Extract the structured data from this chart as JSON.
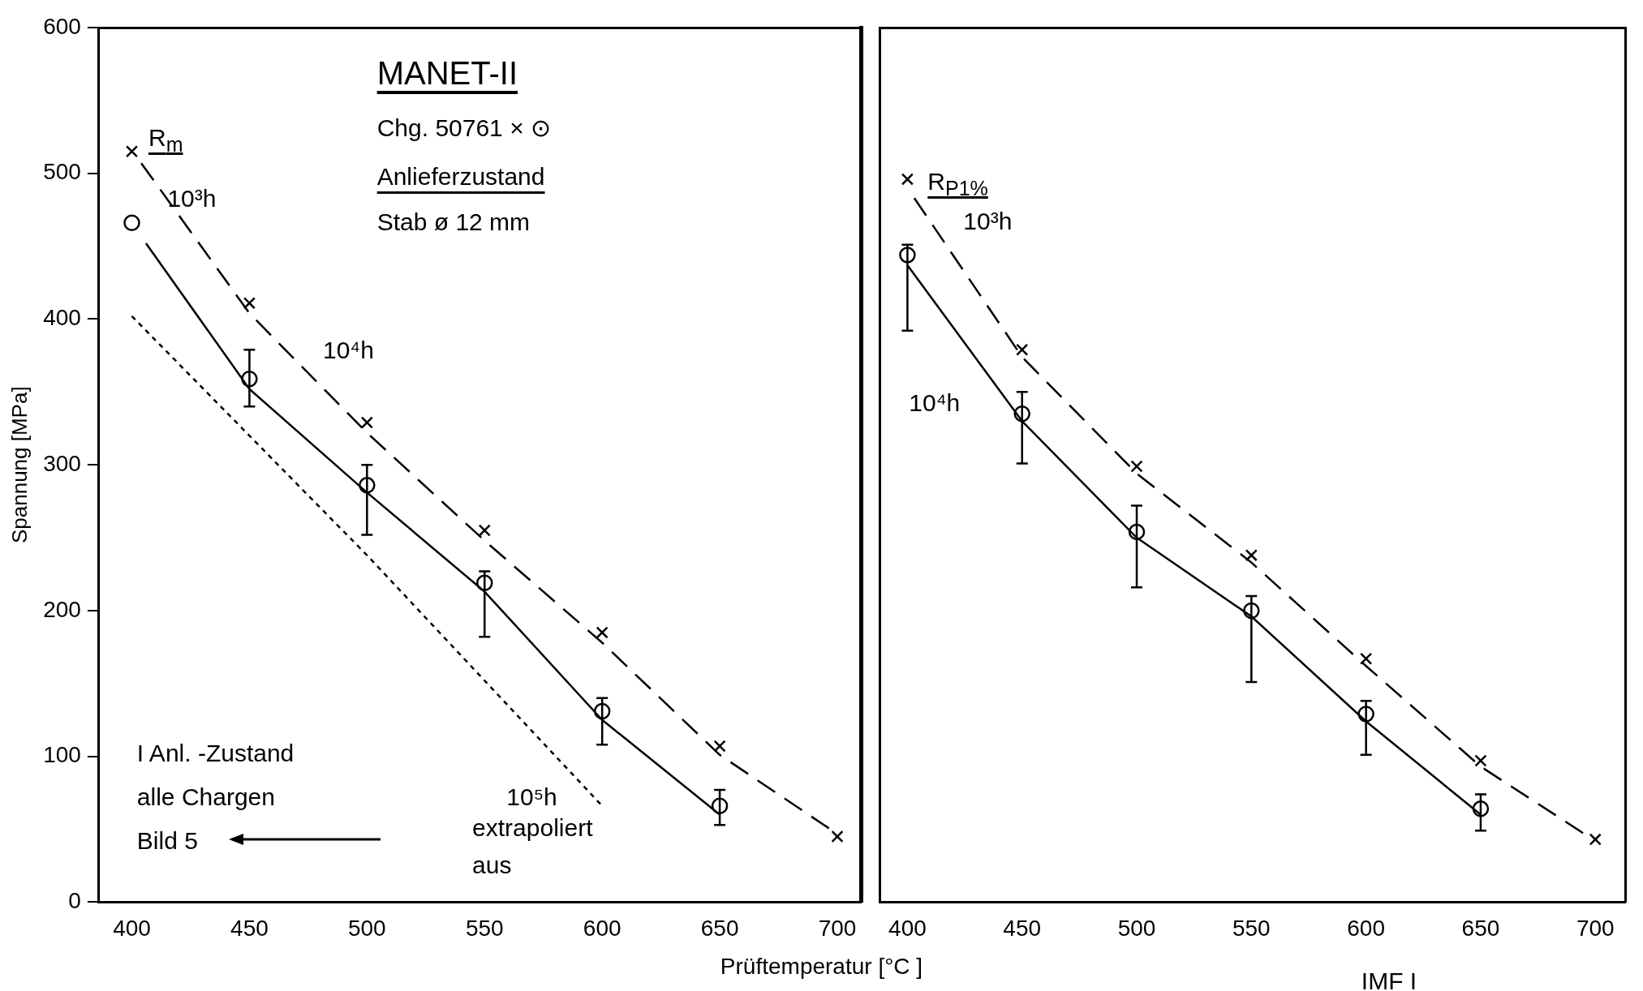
{
  "chart_data": [
    {
      "type": "scatter",
      "title": "MANET-II",
      "ylabel": "Spannung [MPa]",
      "xlabel": "Prüftemperatur [°C ]",
      "xlim": [
        386,
        710
      ],
      "xticks": [
        400,
        450,
        500,
        550,
        600,
        650,
        700
      ],
      "ylim": [
        0,
        600
      ],
      "yticks": [
        0,
        100,
        200,
        300,
        400,
        500,
        600
      ],
      "grid": false,
      "legend": false,
      "series": [
        {
          "type": "scatter",
          "marker": "cross",
          "color": "#000000",
          "x": [
            400,
            450,
            500,
            550,
            600,
            650,
            700
          ],
          "values": [
            515,
            411,
            329,
            255,
            185,
            107,
            45
          ]
        },
        {
          "type": "scatter",
          "marker": "circle",
          "color": "#000000",
          "x": [
            400,
            450,
            500,
            550,
            600,
            650
          ],
          "values": [
            466,
            359,
            286,
            219,
            131,
            66
          ],
          "errors": [
            null,
            [
              340,
              379
            ],
            [
              252,
              300
            ],
            [
              182,
              227
            ],
            [
              108,
              140
            ],
            [
              53,
              77
            ]
          ]
        },
        {
          "type": "line",
          "marker": "none",
          "line_style": "dashed",
          "color": "#000000",
          "x": [
            404,
            450,
            500,
            550,
            600,
            650,
            697
          ],
          "values": [
            507,
            404,
            322,
            248,
            178,
            101,
            50
          ]
        },
        {
          "type": "line",
          "marker": "none",
          "line_style": "solid",
          "color": "#000000",
          "x": [
            406,
            450,
            500,
            550,
            600,
            650
          ],
          "values": [
            452,
            352,
            281,
            213,
            125,
            60
          ]
        },
        {
          "type": "line",
          "marker": "none",
          "line_style": "dotted",
          "color": "#000000",
          "x": [
            400,
            500,
            600
          ],
          "values": [
            402,
            238,
            66
          ]
        }
      ],
      "annotations": [
        "Chg.  50761      × ⊙",
        "Anlieferzustand",
        "Stab  ø 12 mm",
        "I Anl. -Zustand",
        "alle  Chargen",
        "Bild  5",
        "extrapoliert",
        "aus",
        "R$_{m}$",
        "10³h",
        "10⁴h",
        "10⁵h"
      ]
    },
    {
      "type": "scatter",
      "xlim": [
        388,
        713
      ],
      "xticks": [
        400,
        450,
        500,
        550,
        600,
        650,
        700
      ],
      "ylim": [
        0,
        600
      ],
      "yticks": [
        0,
        100,
        200,
        300,
        400,
        500,
        600
      ],
      "tick_labels": "x",
      "grid": false,
      "legend": false,
      "series": [
        {
          "type": "scatter",
          "marker": "cross",
          "color": "#000000",
          "x": [
            400,
            450,
            500,
            550,
            600,
            650,
            700
          ],
          "values": [
            496,
            379,
            299,
            238,
            167,
            97,
            43
          ]
        },
        {
          "type": "scatter",
          "marker": "circle",
          "color": "#000000",
          "x": [
            400,
            450,
            500,
            550,
            600,
            650
          ],
          "values": [
            444,
            335,
            254,
            200,
            129,
            64
          ],
          "errors": [
            [
              392,
              451
            ],
            [
              301,
              350
            ],
            [
              216,
              272
            ],
            [
              151,
              210
            ],
            [
              101,
              138
            ],
            [
              49,
              74
            ]
          ]
        },
        {
          "type": "line",
          "marker": "none",
          "line_style": "dashed",
          "color": "#000000",
          "x": [
            403,
            450,
            500,
            550,
            600,
            650,
            697
          ],
          "values": [
            483,
            374,
            294,
            233,
            162,
            93,
            45
          ]
        },
        {
          "type": "line",
          "marker": "none",
          "line_style": "solid",
          "color": "#000000",
          "x": [
            400,
            450,
            500,
            550,
            600,
            650
          ],
          "values": [
            437,
            330,
            250,
            196,
            124,
            60
          ]
        }
      ],
      "annotations": [
        "IMF I",
        "R$_{P1%}$",
        "10³h",
        "10⁴h"
      ]
    }
  ]
}
